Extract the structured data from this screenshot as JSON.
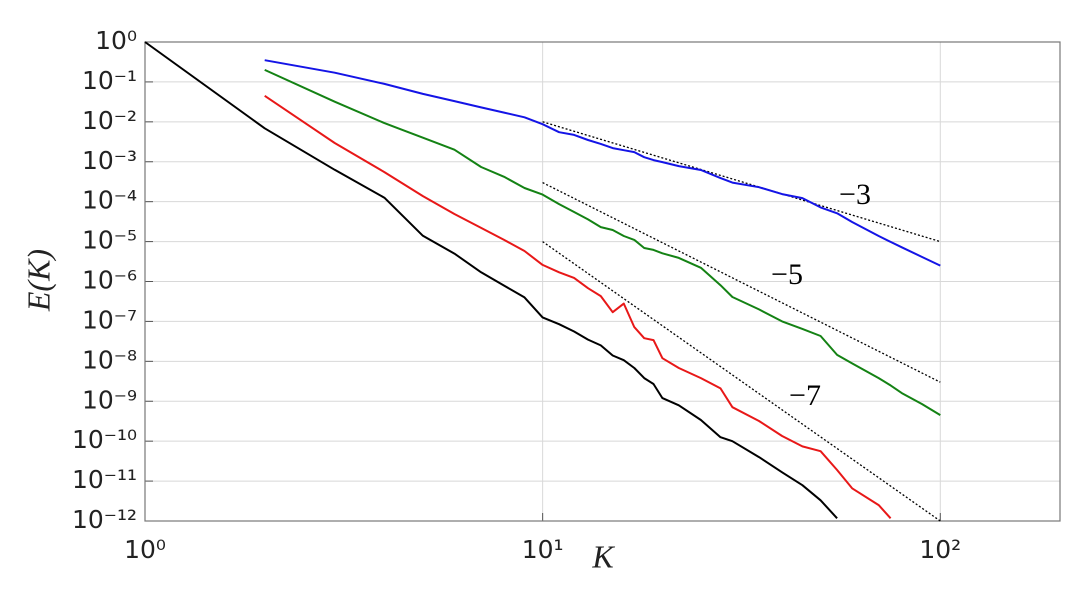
{
  "chart_data": {
    "type": "line",
    "xlabel": "K",
    "ylabel": "E(K)",
    "xscale": "log",
    "yscale": "log",
    "grid": true,
    "xlim": [
      1,
      200
    ],
    "ylim": [
      1e-12,
      1
    ],
    "xticks": [
      {
        "value": 1,
        "label": "10⁰"
      },
      {
        "value": 10,
        "label": "10¹"
      },
      {
        "value": 100,
        "label": "10²"
      }
    ],
    "yticks": [
      {
        "value": 1,
        "label": "10⁰"
      },
      {
        "value": 0.1,
        "label": "10⁻¹"
      },
      {
        "value": 0.01,
        "label": "10⁻²"
      },
      {
        "value": 0.001,
        "label": "10⁻³"
      },
      {
        "value": 0.0001,
        "label": "10⁻⁴"
      },
      {
        "value": 1e-05,
        "label": "10⁻⁵"
      },
      {
        "value": 1e-06,
        "label": "10⁻⁶"
      },
      {
        "value": 1e-07,
        "label": "10⁻⁷"
      },
      {
        "value": 1e-08,
        "label": "10⁻⁸"
      },
      {
        "value": 1e-09,
        "label": "10⁻⁹"
      },
      {
        "value": 1e-10,
        "label": "10⁻¹⁰"
      },
      {
        "value": 1e-11,
        "label": "10⁻¹¹"
      },
      {
        "value": 1e-12,
        "label": "10⁻¹²"
      }
    ],
    "x": [
      1,
      2,
      3,
      4,
      5,
      6,
      7,
      8,
      9,
      10,
      11,
      12,
      13,
      14,
      15,
      16,
      17,
      18,
      19,
      20,
      22,
      25,
      28,
      30,
      35,
      40,
      45,
      50,
      55,
      60,
      70,
      75,
      80,
      90,
      100
    ],
    "series": [
      {
        "color": "#000000",
        "values": [
          1,
          0.0069,
          0.00063,
          0.000126,
          1.4e-05,
          5e-06,
          1.7e-06,
          7.9e-07,
          4e-07,
          1.26e-07,
          8.5e-08,
          5.6e-08,
          3.5e-08,
          2.5e-08,
          1.4e-08,
          1.07e-08,
          6.8e-09,
          3.8e-09,
          2.7e-09,
          1.2e-09,
          7.9e-10,
          3.4e-10,
          1.26e-10,
          1e-10,
          4e-11,
          1.66e-11,
          7.9e-12,
          3.3e-12,
          1.17e-12,
          null,
          null,
          null,
          null,
          null,
          null
        ]
      },
      {
        "color": "#e81818",
        "values": [
          null,
          0.045,
          0.00295,
          0.00055,
          0.000138,
          4.9e-05,
          2.2e-05,
          1.1e-05,
          5.8e-06,
          2.6e-06,
          1.7e-06,
          1.23e-06,
          6.8e-07,
          4.3e-07,
          1.7e-07,
          2.8e-07,
          7.2e-08,
          3.8e-08,
          3.4e-08,
          1.2e-08,
          6.8e-09,
          3.8e-09,
          2.1e-09,
          7.1e-10,
          3.2e-10,
          1.35e-10,
          7.4e-11,
          5.6e-11,
          1.9e-11,
          6.6e-12,
          2.5e-12,
          1.17e-12,
          null,
          null,
          null
        ]
      },
      {
        "color": "#148214",
        "values": [
          null,
          0.2,
          0.032,
          0.0093,
          0.004,
          0.002,
          0.00074,
          0.00042,
          0.00022,
          0.00015,
          8.7e-05,
          5.5e-05,
          3.6e-05,
          2.3e-05,
          1.95e-05,
          1.38e-05,
          1.1e-05,
          6.9e-06,
          6.2e-06,
          5.1e-06,
          3.9e-06,
          2.2e-06,
          8.1e-07,
          4.1e-07,
          2e-07,
          1e-07,
          6.5e-08,
          4.3e-08,
          1.45e-08,
          8.9e-09,
          3.8e-09,
          2.5e-09,
          1.6e-09,
          8.5e-10,
          4.5e-10
        ]
      },
      {
        "color": "#1414e6",
        "values": [
          null,
          0.35,
          0.17,
          0.089,
          0.05,
          0.033,
          0.023,
          0.017,
          0.013,
          0.0087,
          0.0055,
          0.0047,
          0.0035,
          0.0028,
          0.0022,
          0.00195,
          0.00174,
          0.0013,
          0.0011,
          0.00098,
          0.00078,
          0.00062,
          0.00039,
          0.0003,
          0.00023,
          0.000155,
          0.000123,
          7.2e-05,
          5.1e-05,
          3.1e-05,
          1.38e-05,
          9.8e-06,
          7.2e-06,
          4.1e-06,
          2.5e-06
        ]
      }
    ],
    "reference_lines": [
      {
        "label": "−3",
        "color": "#000000",
        "x": [
          10,
          100
        ],
        "values": [
          0.01,
          1e-05
        ]
      },
      {
        "label": "−5",
        "color": "#000000",
        "x": [
          10,
          100
        ],
        "values": [
          0.0003,
          3e-09
        ]
      },
      {
        "label": "−7",
        "color": "#000000",
        "x": [
          10,
          100
        ],
        "values": [
          1e-05,
          1e-12
        ]
      }
    ]
  }
}
